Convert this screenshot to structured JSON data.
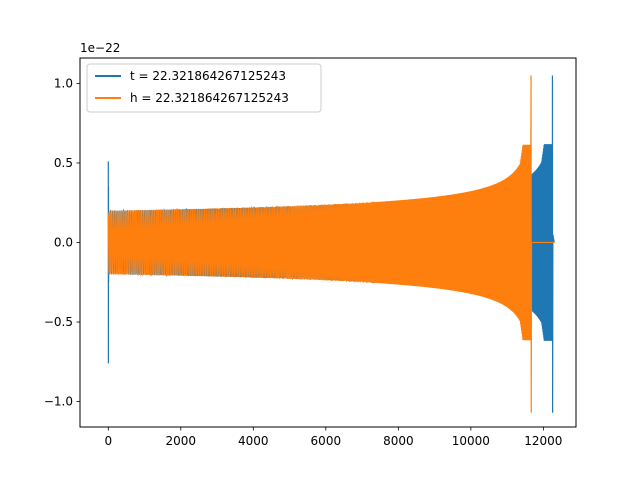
{
  "chart_data": {
    "type": "line",
    "title": "",
    "xlabel": "",
    "ylabel": "",
    "y_offset_label": "1e−22",
    "xlim": [
      -780,
      12900
    ],
    "ylim": [
      -1.16,
      1.16
    ],
    "x_ticks": [
      0,
      2000,
      4000,
      6000,
      8000,
      10000,
      12000
    ],
    "x_tick_labels": [
      "0",
      "2000",
      "4000",
      "6000",
      "8000",
      "10000",
      "12000"
    ],
    "y_ticks": [
      -1.0,
      -0.5,
      0.0,
      0.5,
      1.0
    ],
    "y_tick_labels": [
      "−1.0",
      "−0.5",
      "0.0",
      "0.5",
      "1.0"
    ],
    "grid": false,
    "legend_position": "top-left",
    "series": [
      {
        "name": "t = 22.321864267125243",
        "color": "#1f77b4",
        "description_values": {
          "start_spike_x": 0,
          "start_spike_y": [
            -0.76,
            0.51
          ],
          "amplitude_start": 0.2,
          "amplitude_before_merger": 0.5,
          "merger_x": 12250,
          "merger_y": [
            -1.07,
            1.05
          ],
          "end_x": 12300
        }
      },
      {
        "name": "h = 22.321864267125243",
        "color": "#ff7f0e",
        "description_values": {
          "start_x": 0,
          "amplitude_start": 0.2,
          "amplitude_before_merger": 0.5,
          "merger_x": 11660,
          "merger_y": [
            -1.07,
            1.05
          ],
          "flat_after_merger_y": 0.0,
          "end_x": 12300
        }
      }
    ]
  }
}
